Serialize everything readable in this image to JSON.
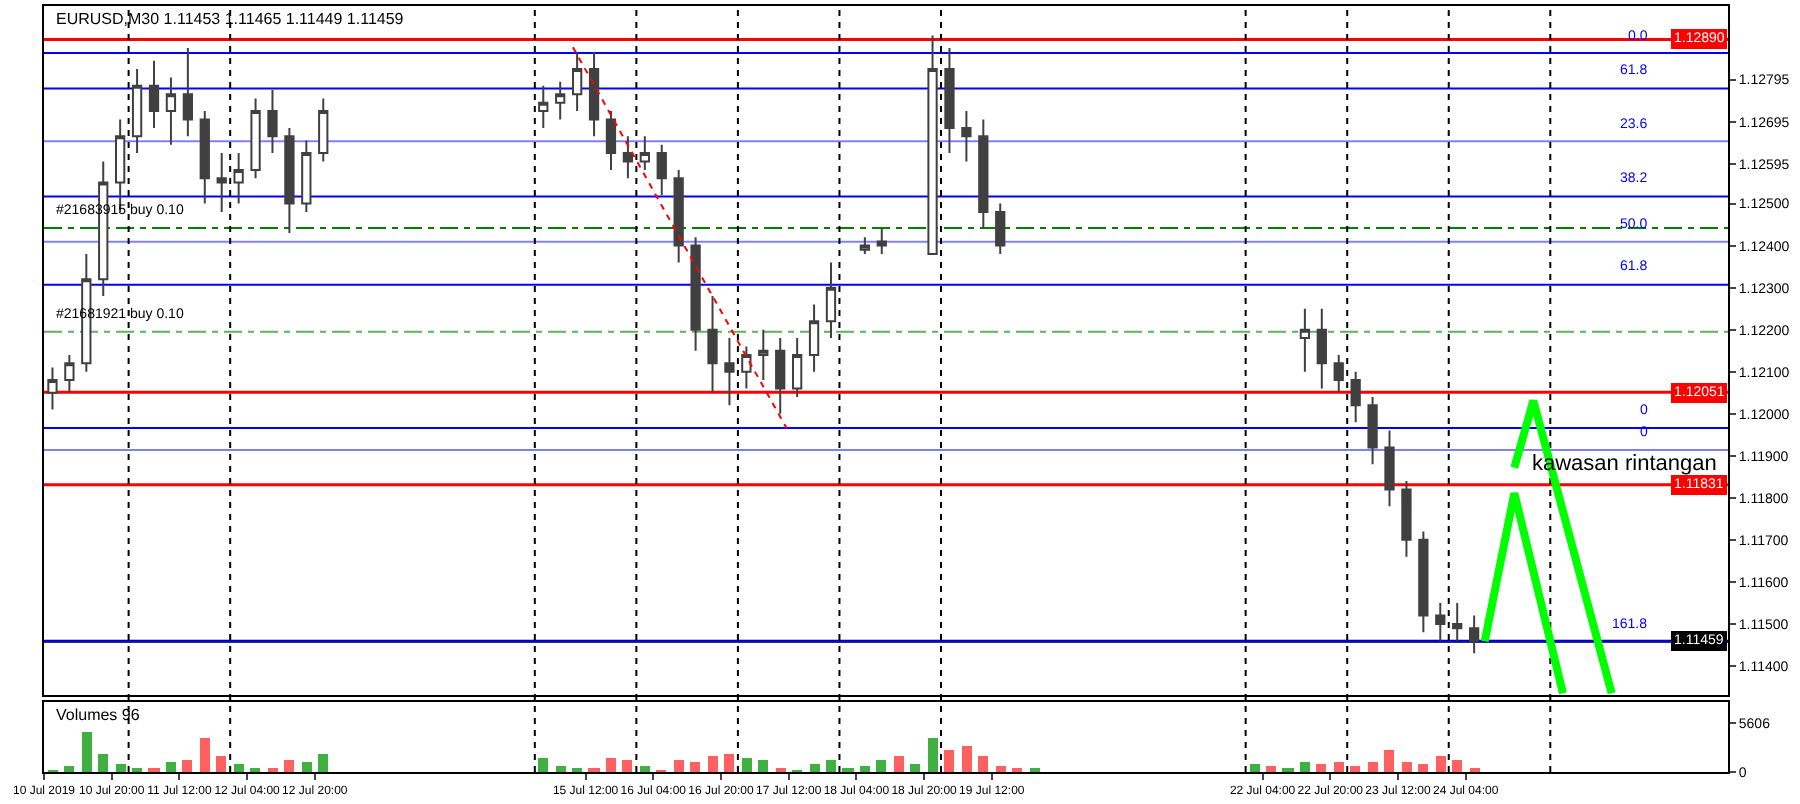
{
  "chart_data": [
    {
      "type": "candlestick",
      "title": "EURUSD,M30 1.11453 1.11465 1.11449 1.11459",
      "color": "#404040",
      "x": [
        "2019-07-10T06:00",
        "2019-07-10T10:00",
        "2019-07-10T14:00",
        "2019-07-10T18:00",
        "2019-07-10T22:00",
        "2019-07-11T02:00",
        "2019-07-11T06:00",
        "2019-07-11T10:00",
        "2019-07-11T14:00",
        "2019-07-11T18:00",
        "2019-07-11T22:00",
        "2019-07-12T02:00",
        "2019-07-12T06:00",
        "2019-07-12T10:00",
        "2019-07-12T14:00",
        "2019-07-12T18:00",
        "2019-07-12T22:00",
        "2019-07-15T02:00",
        "2019-07-15T06:00",
        "2019-07-15T10:00",
        "2019-07-15T14:00",
        "2019-07-15T18:00",
        "2019-07-15T22:00",
        "2019-07-16T02:00",
        "2019-07-16T06:00",
        "2019-07-16T10:00",
        "2019-07-16T14:00",
        "2019-07-16T18:00",
        "2019-07-16T22:00",
        "2019-07-17T02:00",
        "2019-07-17T06:00",
        "2019-07-17T10:00",
        "2019-07-17T14:00",
        "2019-07-17T18:00",
        "2019-07-17T22:00",
        "2019-07-18T06:00",
        "2019-07-18T10:00",
        "2019-07-18T22:00",
        "2019-07-19T02:00",
        "2019-07-19T06:00",
        "2019-07-19T10:00",
        "2019-07-19T14:00",
        "2019-07-22T14:00",
        "2019-07-22T18:00",
        "2019-07-22T22:00",
        "2019-07-23T02:00",
        "2019-07-23T06:00",
        "2019-07-23T10:00",
        "2019-07-23T14:00",
        "2019-07-23T18:00",
        "2019-07-23T22:00",
        "2019-07-24T02:00",
        "2019-07-24T06:00"
      ],
      "ohlc": [
        [
          1.1205,
          1.1211,
          1.1201,
          1.1208
        ],
        [
          1.1208,
          1.1214,
          1.1205,
          1.1212
        ],
        [
          1.1212,
          1.1238,
          1.121,
          1.1232
        ],
        [
          1.1232,
          1.126,
          1.1228,
          1.1255
        ],
        [
          1.1255,
          1.127,
          1.1248,
          1.1266
        ],
        [
          1.1266,
          1.1282,
          1.1262,
          1.1278
        ],
        [
          1.1278,
          1.1284,
          1.1268,
          1.1272
        ],
        [
          1.1272,
          1.128,
          1.1264,
          1.1276
        ],
        [
          1.1276,
          1.1287,
          1.1266,
          1.127
        ],
        [
          1.127,
          1.1272,
          1.125,
          1.1256
        ],
        [
          1.1256,
          1.1262,
          1.1248,
          1.1255
        ],
        [
          1.1255,
          1.1262,
          1.125,
          1.1258
        ],
        [
          1.1258,
          1.1275,
          1.1256,
          1.1272
        ],
        [
          1.1272,
          1.1277,
          1.1262,
          1.1266
        ],
        [
          1.1266,
          1.1268,
          1.1243,
          1.125
        ],
        [
          1.125,
          1.1265,
          1.1248,
          1.1262
        ],
        [
          1.1262,
          1.1275,
          1.126,
          1.1272
        ],
        [
          1.1272,
          1.1278,
          1.1268,
          1.1274
        ],
        [
          1.1274,
          1.1279,
          1.127,
          1.1276
        ],
        [
          1.1276,
          1.1286,
          1.1272,
          1.1282
        ],
        [
          1.1282,
          1.1286,
          1.1266,
          1.127
        ],
        [
          1.127,
          1.1272,
          1.1258,
          1.1262
        ],
        [
          1.1262,
          1.1266,
          1.1256,
          1.126
        ],
        [
          1.126,
          1.1266,
          1.1258,
          1.1262
        ],
        [
          1.1262,
          1.1264,
          1.1252,
          1.1256
        ],
        [
          1.1256,
          1.1258,
          1.1236,
          1.124
        ],
        [
          1.124,
          1.1242,
          1.1215,
          1.122
        ],
        [
          1.122,
          1.1228,
          1.1205,
          1.1212
        ],
        [
          1.1212,
          1.1218,
          1.1202,
          1.121
        ],
        [
          1.121,
          1.1216,
          1.1206,
          1.1214
        ],
        [
          1.1214,
          1.122,
          1.1208,
          1.1215
        ],
        [
          1.1215,
          1.1218,
          1.12,
          1.1206
        ],
        [
          1.1206,
          1.1218,
          1.1204,
          1.1214
        ],
        [
          1.1214,
          1.1226,
          1.121,
          1.1222
        ],
        [
          1.1222,
          1.1236,
          1.1218,
          1.123
        ],
        [
          1.1239,
          1.1242,
          1.1238,
          1.124
        ],
        [
          1.124,
          1.1244,
          1.1238,
          1.1241
        ],
        [
          1.1238,
          1.129,
          1.1238,
          1.1282
        ],
        [
          1.1282,
          1.1287,
          1.1262,
          1.1268
        ],
        [
          1.1268,
          1.1272,
          1.126,
          1.1266
        ],
        [
          1.1266,
          1.127,
          1.1244,
          1.1248
        ],
        [
          1.1248,
          1.125,
          1.1238,
          1.124
        ],
        [
          1.1218,
          1.1225,
          1.121,
          1.122
        ],
        [
          1.122,
          1.1225,
          1.1206,
          1.1212
        ],
        [
          1.1212,
          1.1214,
          1.1205,
          1.1208
        ],
        [
          1.1208,
          1.121,
          1.1198,
          1.1202
        ],
        [
          1.1202,
          1.1204,
          1.1188,
          1.1192
        ],
        [
          1.1192,
          1.1196,
          1.1178,
          1.1182
        ],
        [
          1.1182,
          1.1184,
          1.1166,
          1.117
        ],
        [
          1.117,
          1.1172,
          1.1148,
          1.1152
        ],
        [
          1.1152,
          1.1155,
          1.1146,
          1.115
        ],
        [
          1.115,
          1.1155,
          1.1146,
          1.1149
        ],
        [
          1.1149,
          1.1152,
          1.1143,
          1.1146
        ]
      ],
      "series": [
        {
          "type": "line",
          "color": "#00ff00",
          "line_style": "solid",
          "x": [
            "2019-07-24T08:30",
            "2019-07-24T15:30",
            "2019-07-25T03:00"
          ],
          "values": [
            1.11459,
            1.11811,
            1.11335
          ]
        },
        {
          "type": "line",
          "color": "#00ff00",
          "line_style": "solid",
          "x": [
            "2019-07-24T15:30",
            "2019-07-24T20:00",
            "2019-07-25T14:30"
          ],
          "values": [
            1.11872,
            1.12031,
            1.11335
          ]
        },
        {
          "type": "line",
          "color": "#ff0000",
          "line_style": "dotted",
          "x": [
            "2019-07-15T09:00",
            "2019-07-17T11:30"
          ],
          "values": [
            1.12872,
            1.11966
          ]
        }
      ],
      "xlim": [
        "2019-07-10T04:00",
        "2019-07-26T18:00"
      ],
      "ylim": [
        1.1133,
        1.1297
      ],
      "yticks": [
        {
          "value": 1.114,
          "label": "1.11400"
        },
        {
          "value": 1.115,
          "label": "1.11500"
        },
        {
          "value": 1.116,
          "label": "1.11600"
        },
        {
          "value": 1.117,
          "label": "1.11700"
        },
        {
          "value": 1.118,
          "label": "1.11800"
        },
        {
          "value": 1.119,
          "label": "1.11900"
        },
        {
          "value": 1.12,
          "label": "1.12000"
        },
        {
          "value": 1.121,
          "label": "1.12100"
        },
        {
          "value": 1.122,
          "label": "1.12200"
        },
        {
          "value": 1.123,
          "label": "1.12300"
        },
        {
          "value": 1.124,
          "label": "1.12400"
        },
        {
          "value": 1.125,
          "label": "1.12500"
        },
        1.12595,
        1.12695,
        1.12795
      ],
      "ref_lines": [
        {
          "axis": "y",
          "value": 1.11459,
          "label": "1.11459",
          "color": "#000000",
          "line_style": "solid"
        },
        {
          "axis": "y",
          "value": 1.1289,
          "label": "1.12890",
          "color": "#ff0000",
          "line_style": "solid"
        },
        {
          "axis": "y",
          "value": 1.12051,
          "label": "1.12051",
          "color": "#ff0000",
          "line_style": "solid"
        },
        {
          "axis": "y",
          "value": 1.11831,
          "label": "1.11831",
          "color": "#ff0000",
          "line_style": "solid"
        },
        {
          "axis": "y",
          "value": 1.12858,
          "color": "#0000ff",
          "line_style": "solid"
        },
        {
          "axis": "y",
          "value": 1.12774,
          "color": "#0000ff",
          "line_style": "solid"
        },
        {
          "axis": "y",
          "value": 1.12648,
          "color": "#8080ff",
          "line_style": "solid"
        },
        {
          "axis": "y",
          "value": 1.12517,
          "color": "#0000ff",
          "line_style": "solid"
        },
        {
          "axis": "y",
          "value": 1.12409,
          "color": "#8080ff",
          "line_style": "solid"
        },
        {
          "axis": "y",
          "value": 1.12307,
          "color": "#0000ff",
          "line_style": "solid"
        },
        {
          "axis": "y",
          "value": 1.11966,
          "color": "#0000ff",
          "line_style": "solid"
        },
        {
          "axis": "y",
          "value": 1.11914,
          "color": "#8080ff",
          "line_style": "solid"
        },
        {
          "axis": "y",
          "value": 1.11459,
          "color": "#0000ff",
          "line_style": "solid"
        },
        {
          "axis": "y",
          "value": 1.12442,
          "label": "#21683915 buy 0.10",
          "color": "#008000",
          "line_style": "dashdot"
        },
        {
          "axis": "y",
          "value": 1.12195,
          "label": "#21681921 buy 0.10",
          "color": "#60b060",
          "line_style": "dashdot"
        },
        {
          "axis": "x",
          "value": "2019-07-11",
          "color": "#000000",
          "line_style": "dotted"
        },
        {
          "axis": "x",
          "value": "2019-07-12",
          "color": "#000000",
          "line_style": "dotted"
        },
        {
          "axis": "x",
          "value": "2019-07-15",
          "color": "#000000",
          "line_style": "dotted"
        },
        {
          "axis": "x",
          "value": "2019-07-16",
          "color": "#000000",
          "line_style": "dotted"
        },
        {
          "axis": "x",
          "value": "2019-07-17",
          "color": "#000000",
          "line_style": "dotted"
        },
        {
          "axis": "x",
          "value": "2019-07-18",
          "color": "#000000",
          "line_style": "dotted"
        },
        {
          "axis": "x",
          "value": "2019-07-19",
          "color": "#000000",
          "line_style": "dotted"
        },
        {
          "axis": "x",
          "value": "2019-07-22",
          "color": "#000000",
          "line_style": "dotted"
        },
        {
          "axis": "x",
          "value": "2019-07-23",
          "color": "#000000",
          "line_style": "dotted"
        },
        {
          "axis": "x",
          "value": "2019-07-24",
          "color": "#000000",
          "line_style": "dotted"
        },
        {
          "axis": "x",
          "value": "2019-07-25",
          "color": "#000000",
          "line_style": "dotted"
        }
      ],
      "annotations": [
        "kawasan rintangan",
        {
          "text": "0.0",
          "y": 1.12858
        },
        {
          "text": "61.8",
          "y": 1.12774
        },
        {
          "text": "23.6",
          "y": 1.12648
        },
        {
          "text": "38.2",
          "y": 1.12517
        },
        {
          "text": "50.0",
          "y": 1.12409
        },
        {
          "text": "61.8",
          "y": 1.12307
        },
        {
          "text": "0",
          "y": 1.11966
        },
        {
          "text": "0",
          "y": 1.11914
        },
        {
          "text": "161.8",
          "y": 1.11459
        }
      ],
      "tick_labels": "y"
    },
    {
      "type": "bar",
      "title": "Volumes 96",
      "x": [
        "2019-07-10T06:00",
        "2019-07-10T10:00",
        "2019-07-10T14:00",
        "2019-07-10T18:00",
        "2019-07-10T22:00",
        "2019-07-11T02:00",
        "2019-07-11T06:00",
        "2019-07-11T10:00",
        "2019-07-11T14:00",
        "2019-07-11T18:00",
        "2019-07-11T22:00",
        "2019-07-12T02:00",
        "2019-07-12T06:00",
        "2019-07-12T10:00",
        "2019-07-12T14:00",
        "2019-07-12T18:00",
        "2019-07-12T22:00",
        "2019-07-15T02:00",
        "2019-07-15T06:00",
        "2019-07-15T10:00",
        "2019-07-15T14:00",
        "2019-07-15T18:00",
        "2019-07-15T22:00",
        "2019-07-16T02:00",
        "2019-07-16T06:00",
        "2019-07-16T10:00",
        "2019-07-16T14:00",
        "2019-07-16T18:00",
        "2019-07-16T22:00",
        "2019-07-17T02:00",
        "2019-07-17T06:00",
        "2019-07-17T10:00",
        "2019-07-17T14:00",
        "2019-07-17T18:00",
        "2019-07-17T22:00",
        "2019-07-18T02:00",
        "2019-07-18T06:00",
        "2019-07-18T10:00",
        "2019-07-18T14:00",
        "2019-07-18T18:00",
        "2019-07-18T22:00",
        "2019-07-19T02:00",
        "2019-07-19T06:00",
        "2019-07-19T10:00",
        "2019-07-19T14:00",
        "2019-07-19T18:00",
        "2019-07-19T22:00",
        "2019-07-22T02:00",
        "2019-07-22T06:00",
        "2019-07-22T10:00",
        "2019-07-22T14:00",
        "2019-07-22T18:00",
        "2019-07-22T22:00",
        "2019-07-23T02:00",
        "2019-07-23T06:00",
        "2019-07-23T10:00",
        "2019-07-23T14:00",
        "2019-07-23T18:00",
        "2019-07-23T22:00",
        "2019-07-24T02:00",
        "2019-07-24T06:00"
      ],
      "values": [
        300,
        800,
        4700,
        2000,
        900,
        400,
        500,
        1200,
        1500,
        3900,
        1800,
        1000,
        400,
        600,
        1400,
        1300,
        2000,
        1600,
        800,
        500,
        600,
        1600,
        1400,
        700,
        300,
        1500,
        1100,
        1800,
        2200,
        1700,
        1400,
        600,
        300,
        1000,
        1400,
        600,
        700,
        1500,
        1800,
        1000,
        3900,
        2500,
        3000,
        1800,
        800,
        600,
        500,
        900,
        700,
        400,
        1200,
        1000,
        1200,
        700,
        1100,
        2600,
        1200,
        1000,
        1800,
        1400,
        400
      ],
      "colors": [
        "#40b040",
        "#40b040",
        "#40b040",
        "#40b040",
        "#40b040",
        "#40b040",
        "#ff6060",
        "#40b040",
        "#ff6060",
        "#ff6060",
        "#ff6060",
        "#40b040",
        "#40b040",
        "#ff6060",
        "#ff6060",
        "#40b040",
        "#40b040",
        "#40b040",
        "#40b040",
        "#40b040",
        "#ff6060",
        "#ff6060",
        "#ff6060",
        "#40b040",
        "#ff6060",
        "#ff6060",
        "#ff6060",
        "#ff6060",
        "#ff6060",
        "#40b040",
        "#40b040",
        "#ff6060",
        "#40b040",
        "#40b040",
        "#40b040",
        "#40b040",
        "#40b040",
        "#40b040",
        "#ff6060",
        "#40b040",
        "#40b040",
        "#ff6060",
        "#ff6060",
        "#ff6060",
        "#ff6060",
        "#ff6060",
        "#40b040",
        "#40b040",
        "#ff6060",
        "#40b040",
        "#40b040",
        "#ff6060",
        "#ff6060",
        "#ff6060",
        "#ff6060",
        "#ff6060",
        "#ff6060",
        "#ff6060",
        "#ff6060",
        "#ff6060",
        "#ff6060"
      ],
      "xlim": [
        "2019-07-10T04:00",
        "2019-07-26T18:00"
      ],
      "ylim": [
        0,
        8000
      ],
      "yticks": [
        0,
        5606
      ],
      "xticks": [
        {
          "value": "2019-07-10T04:00",
          "label": "10 Jul 2019"
        },
        {
          "value": "2019-07-10T20:00",
          "label": "10 Jul 20:00"
        },
        {
          "value": "2019-07-11T12:00",
          "label": "11 Jul 12:00"
        },
        {
          "value": "2019-07-12T04:00",
          "label": "12 Jul 04:00"
        },
        {
          "value": "2019-07-12T20:00",
          "label": "12 Jul 20:00"
        },
        {
          "value": "2019-07-15T12:00",
          "label": "15 Jul 12:00"
        },
        {
          "value": "2019-07-16T04:00",
          "label": "16 Jul 04:00"
        },
        {
          "value": "2019-07-16T20:00",
          "label": "16 Jul 20:00"
        },
        {
          "value": "2019-07-17T12:00",
          "label": "17 Jul 12:00"
        },
        {
          "value": "2019-07-18T04:00",
          "label": "18 Jul 04:00"
        },
        {
          "value": "2019-07-18T20:00",
          "label": "18 Jul 20:00"
        },
        {
          "value": "2019-07-19T12:00",
          "label": "19 Jul 12:00"
        },
        {
          "value": "2019-07-22T04:00",
          "label": "22 Jul 04:00"
        },
        {
          "value": "2019-07-22T20:00",
          "label": "22 Jul 20:00"
        },
        {
          "value": "2019-07-23T12:00",
          "label": "23 Jul 12:00"
        },
        {
          "value": "2019-07-24T04:00",
          "label": "24 Jul 04:00"
        }
      ],
      "grid": false
    }
  ]
}
